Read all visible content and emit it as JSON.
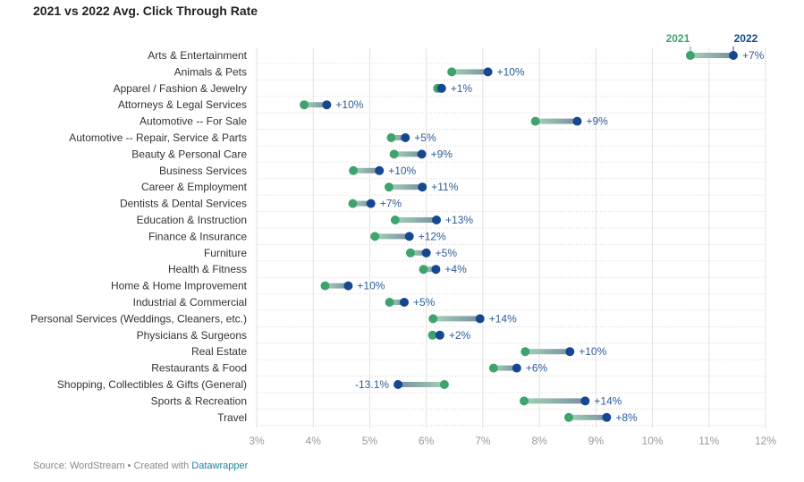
{
  "title": "2021 vs 2022 Avg. Click Through Rate",
  "footer": {
    "source_text": "Source: WordStream • Created with ",
    "link_text": "Datawrapper"
  },
  "colors": {
    "y2021": "#3fa36e",
    "y2022": "#15488f",
    "bar_start": "#a3d3b6",
    "bar_end": "#7b8ea2",
    "label": "#2c5d9b",
    "grid": "#e1e1e1",
    "tick": "#999999",
    "category": "#333333"
  },
  "chart_data": {
    "type": "dot-range",
    "title": "2021 vs 2022 Avg. Click Through Rate",
    "x_unit": "%",
    "xlim": [
      3,
      12
    ],
    "x_ticks": [
      "3%",
      "4%",
      "5%",
      "6%",
      "7%",
      "8%",
      "9%",
      "10%",
      "11%",
      "12%"
    ],
    "series": [
      {
        "name": "2021",
        "color": "#3fa36e"
      },
      {
        "name": "2022",
        "color": "#15488f"
      }
    ],
    "legend_placement": "top-right",
    "grid": true,
    "rows": [
      {
        "category": "Arts & Entertainment",
        "v2021": 10.67,
        "v2022": 11.43,
        "change": "+7%"
      },
      {
        "category": "Animals & Pets",
        "v2021": 6.45,
        "v2022": 7.09,
        "change": "+10%"
      },
      {
        "category": "Apparel / Fashion & Jewelry",
        "v2021": 6.2,
        "v2022": 6.27,
        "change": "+1%"
      },
      {
        "category": "Attorneys & Legal Services",
        "v2021": 3.84,
        "v2022": 4.24,
        "change": "+10%"
      },
      {
        "category": "Automotive -- For Sale",
        "v2021": 7.93,
        "v2022": 8.67,
        "change": "+9%"
      },
      {
        "category": "Automotive -- Repair, Service & Parts",
        "v2021": 5.38,
        "v2022": 5.63,
        "change": "+5%"
      },
      {
        "category": "Beauty & Personal Care",
        "v2021": 5.43,
        "v2022": 5.92,
        "change": "+9%"
      },
      {
        "category": "Business Services",
        "v2021": 4.71,
        "v2022": 5.17,
        "change": "+10%"
      },
      {
        "category": "Career & Employment",
        "v2021": 5.34,
        "v2022": 5.93,
        "change": "+11%"
      },
      {
        "category": "Dentists & Dental Services",
        "v2021": 4.7,
        "v2022": 5.02,
        "change": "+7%"
      },
      {
        "category": "Education & Instruction",
        "v2021": 5.45,
        "v2022": 6.18,
        "change": "+13%"
      },
      {
        "category": "Finance & Insurance",
        "v2021": 5.09,
        "v2022": 5.7,
        "change": "+12%"
      },
      {
        "category": "Furniture",
        "v2021": 5.72,
        "v2022": 6.0,
        "change": "+5%"
      },
      {
        "category": "Health & Fitness",
        "v2021": 5.95,
        "v2022": 6.17,
        "change": "+4%"
      },
      {
        "category": "Home & Home Improvement",
        "v2021": 4.21,
        "v2022": 4.62,
        "change": "+10%"
      },
      {
        "category": "Industrial & Commercial",
        "v2021": 5.35,
        "v2022": 5.61,
        "change": "+5%"
      },
      {
        "category": "Personal Services (Weddings, Cleaners, etc.)",
        "v2021": 6.12,
        "v2022": 6.95,
        "change": "+14%"
      },
      {
        "category": "Physicians & Surgeons",
        "v2021": 6.11,
        "v2022": 6.24,
        "change": "+2%"
      },
      {
        "category": "Real Estate",
        "v2021": 7.75,
        "v2022": 8.54,
        "change": "+10%"
      },
      {
        "category": "Restaurants & Food",
        "v2021": 7.19,
        "v2022": 7.6,
        "change": "+6%"
      },
      {
        "category": "Shopping, Collectibles & Gifts (General)",
        "v2021": 6.32,
        "v2022": 5.5,
        "change": "-13.1%"
      },
      {
        "category": "Sports & Recreation",
        "v2021": 7.73,
        "v2022": 8.81,
        "change": "+14%"
      },
      {
        "category": "Travel",
        "v2021": 8.52,
        "v2022": 9.19,
        "change": "+8%"
      }
    ]
  }
}
